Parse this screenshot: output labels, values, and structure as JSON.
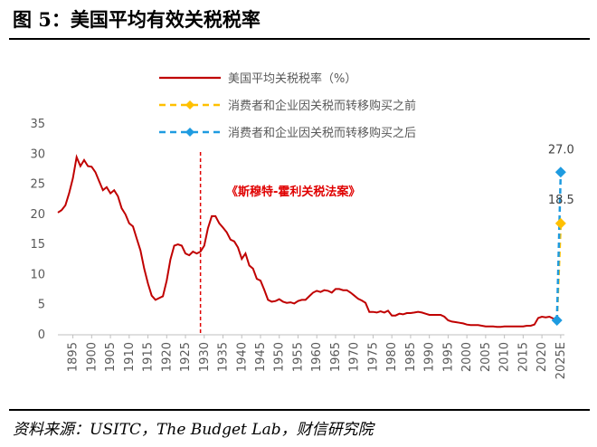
{
  "figure": {
    "title": "图 5：美国平均有效关税税率",
    "source": "资料来源：USITC，The Budget Lab，财信研究院"
  },
  "chart_data": {
    "type": "line",
    "title": "",
    "xlabel": "",
    "ylabel": "",
    "ylim": [
      0,
      35
    ],
    "yticks": [
      0,
      5,
      10,
      15,
      20,
      25,
      30,
      35
    ],
    "xticks": [
      "1895",
      "1900",
      "1905",
      "1910",
      "1915",
      "1920",
      "1925",
      "1930",
      "1935",
      "1940",
      "1945",
      "1950",
      "1955",
      "1960",
      "1965",
      "1970",
      "1975",
      "1980",
      "1985",
      "1990",
      "1995",
      "2000",
      "2005",
      "2010",
      "2015",
      "2020",
      "2025E"
    ],
    "grid": false,
    "legend_placement": "top",
    "series": [
      {
        "name": "美国平均关税税率（%）",
        "color": "#c00000",
        "style": "solid",
        "points": [
          [
            1891,
            20.3
          ],
          [
            1892,
            20.7
          ],
          [
            1893,
            21.5
          ],
          [
            1894,
            23.5
          ],
          [
            1895,
            26.0
          ],
          [
            1896,
            29.5
          ],
          [
            1897,
            28.0
          ],
          [
            1898,
            29.0
          ],
          [
            1899,
            28.0
          ],
          [
            1900,
            27.9
          ],
          [
            1901,
            27.0
          ],
          [
            1902,
            25.5
          ],
          [
            1903,
            24.0
          ],
          [
            1904,
            24.5
          ],
          [
            1905,
            23.5
          ],
          [
            1906,
            24.0
          ],
          [
            1907,
            23.0
          ],
          [
            1908,
            21.0
          ],
          [
            1909,
            20.0
          ],
          [
            1910,
            18.5
          ],
          [
            1911,
            18.0
          ],
          [
            1912,
            16.0
          ],
          [
            1913,
            14.0
          ],
          [
            1914,
            11.0
          ],
          [
            1915,
            8.5
          ],
          [
            1916,
            6.5
          ],
          [
            1917,
            5.8
          ],
          [
            1918,
            6.1
          ],
          [
            1919,
            6.4
          ],
          [
            1920,
            9.0
          ],
          [
            1921,
            12.5
          ],
          [
            1922,
            14.8
          ],
          [
            1923,
            15.0
          ],
          [
            1924,
            14.8
          ],
          [
            1925,
            13.5
          ],
          [
            1926,
            13.2
          ],
          [
            1927,
            13.8
          ],
          [
            1928,
            13.5
          ],
          [
            1929,
            13.8
          ],
          [
            1930,
            14.8
          ],
          [
            1931,
            17.7
          ],
          [
            1932,
            19.7
          ],
          [
            1933,
            19.7
          ],
          [
            1934,
            18.5
          ],
          [
            1935,
            17.8
          ],
          [
            1936,
            17.0
          ],
          [
            1937,
            15.8
          ],
          [
            1938,
            15.5
          ],
          [
            1939,
            14.5
          ],
          [
            1940,
            12.6
          ],
          [
            1941,
            13.5
          ],
          [
            1942,
            11.5
          ],
          [
            1943,
            11.0
          ],
          [
            1944,
            9.3
          ],
          [
            1945,
            9.0
          ],
          [
            1946,
            7.5
          ],
          [
            1947,
            5.8
          ],
          [
            1948,
            5.5
          ],
          [
            1949,
            5.6
          ],
          [
            1950,
            5.9
          ],
          [
            1951,
            5.5
          ],
          [
            1952,
            5.3
          ],
          [
            1953,
            5.4
          ],
          [
            1954,
            5.2
          ],
          [
            1955,
            5.6
          ],
          [
            1956,
            5.8
          ],
          [
            1957,
            5.8
          ],
          [
            1958,
            6.4
          ],
          [
            1959,
            7.0
          ],
          [
            1960,
            7.3
          ],
          [
            1961,
            7.1
          ],
          [
            1962,
            7.4
          ],
          [
            1963,
            7.3
          ],
          [
            1964,
            7.0
          ],
          [
            1965,
            7.6
          ],
          [
            1966,
            7.6
          ],
          [
            1967,
            7.4
          ],
          [
            1968,
            7.4
          ],
          [
            1969,
            7.0
          ],
          [
            1970,
            6.5
          ],
          [
            1971,
            6.0
          ],
          [
            1972,
            5.7
          ],
          [
            1973,
            5.3
          ],
          [
            1974,
            3.8
          ],
          [
            1975,
            3.8
          ],
          [
            1976,
            3.7
          ],
          [
            1977,
            3.9
          ],
          [
            1978,
            3.7
          ],
          [
            1979,
            4.0
          ],
          [
            1980,
            3.2
          ],
          [
            1981,
            3.2
          ],
          [
            1982,
            3.5
          ],
          [
            1983,
            3.4
          ],
          [
            1984,
            3.6
          ],
          [
            1985,
            3.6
          ],
          [
            1986,
            3.7
          ],
          [
            1987,
            3.8
          ],
          [
            1988,
            3.7
          ],
          [
            1989,
            3.5
          ],
          [
            1990,
            3.3
          ],
          [
            1991,
            3.3
          ],
          [
            1992,
            3.3
          ],
          [
            1993,
            3.3
          ],
          [
            1994,
            3.0
          ],
          [
            1995,
            2.4
          ],
          [
            1996,
            2.2
          ],
          [
            1997,
            2.1
          ],
          [
            1998,
            2.0
          ],
          [
            1999,
            1.9
          ],
          [
            2000,
            1.7
          ],
          [
            2001,
            1.6
          ],
          [
            2002,
            1.6
          ],
          [
            2003,
            1.6
          ],
          [
            2004,
            1.5
          ],
          [
            2005,
            1.4
          ],
          [
            2006,
            1.4
          ],
          [
            2007,
            1.4
          ],
          [
            2008,
            1.3
          ],
          [
            2009,
            1.3
          ],
          [
            2010,
            1.4
          ],
          [
            2011,
            1.4
          ],
          [
            2012,
            1.4
          ],
          [
            2013,
            1.4
          ],
          [
            2014,
            1.4
          ],
          [
            2015,
            1.4
          ],
          [
            2016,
            1.5
          ],
          [
            2017,
            1.5
          ],
          [
            2018,
            1.7
          ],
          [
            2019,
            2.8
          ],
          [
            2020,
            3.0
          ],
          [
            2021,
            2.9
          ],
          [
            2022,
            3.0
          ],
          [
            2023,
            2.7
          ],
          [
            2024,
            2.4
          ]
        ]
      },
      {
        "name": "消费者和企业因关税而转移购买之前",
        "color": "#ffc000",
        "style": "dashed",
        "points": [
          [
            2024,
            2.4
          ],
          [
            2025,
            18.5
          ]
        ],
        "end_label": "18.5"
      },
      {
        "name": "消费者和企业因关税而转移购买之后",
        "color": "#1e9be0",
        "style": "dashed",
        "points": [
          [
            2024,
            2.4
          ],
          [
            2025,
            27.0
          ]
        ],
        "end_label": "27.0"
      }
    ],
    "annotations": [
      {
        "x": 1929,
        "text": "《斯穆特-霍利关税法案》"
      }
    ]
  }
}
